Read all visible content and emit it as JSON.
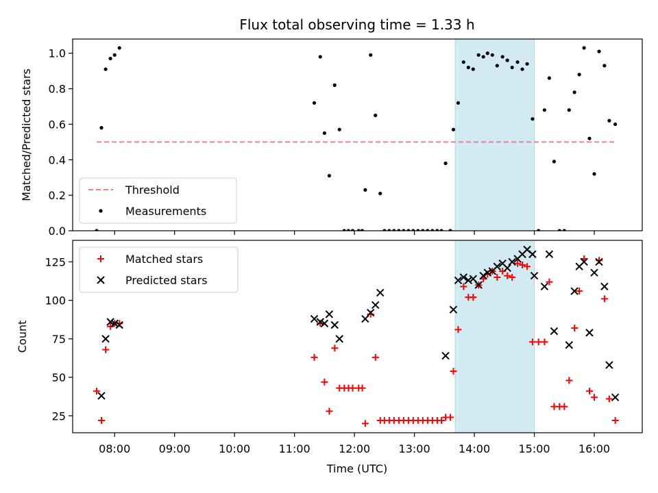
{
  "chart_data": {
    "type": "scatter",
    "title": "Flux total observing time = 1.33 h",
    "xlabel": "Time (UTC)",
    "x_ticks": [
      "08:00",
      "09:00",
      "10:00",
      "11:00",
      "12:00",
      "13:00",
      "14:00",
      "15:00",
      "16:00"
    ],
    "xlim": [
      7.3,
      16.8
    ],
    "highlight_span": [
      13.68,
      15.0
    ],
    "highlight_color": "#add8e6",
    "panels": [
      {
        "ylabel": "Matched/Predicted stars",
        "ylim": [
          0.0,
          1.08
        ],
        "y_ticks": [
          "0.0",
          "0.2",
          "0.4",
          "0.6",
          "0.8",
          "1.0"
        ],
        "threshold": {
          "label": "Threshold",
          "y": 0.5,
          "x_range": [
            7.7,
            16.35
          ],
          "color": "#f08080"
        },
        "legend": [
          {
            "label": "Threshold",
            "marker": "dashed-line",
            "color": "#f08080"
          },
          {
            "label": "Measurements",
            "marker": "dot",
            "color": "#000000"
          }
        ],
        "series": [
          {
            "name": "Measurements",
            "marker": "dot",
            "color": "#000000",
            "points": [
              [
                7.7,
                0.0
              ],
              [
                7.78,
                0.58
              ],
              [
                7.85,
                0.91
              ],
              [
                7.93,
                0.97
              ],
              [
                8.0,
                0.99
              ],
              [
                8.08,
                1.03
              ],
              [
                11.33,
                0.72
              ],
              [
                11.43,
                0.98
              ],
              [
                11.5,
                0.55
              ],
              [
                11.58,
                0.31
              ],
              [
                11.67,
                0.82
              ],
              [
                11.75,
                0.57
              ],
              [
                11.83,
                0.0
              ],
              [
                11.9,
                0.0
              ],
              [
                11.97,
                0.0
              ],
              [
                12.07,
                0.0
              ],
              [
                12.13,
                0.0
              ],
              [
                12.18,
                0.23
              ],
              [
                12.27,
                0.99
              ],
              [
                12.35,
                0.65
              ],
              [
                12.43,
                0.21
              ],
              [
                12.5,
                0.0
              ],
              [
                12.58,
                0.0
              ],
              [
                12.66,
                0.0
              ],
              [
                12.74,
                0.0
              ],
              [
                12.82,
                0.0
              ],
              [
                12.9,
                0.0
              ],
              [
                12.98,
                0.0
              ],
              [
                13.06,
                0.0
              ],
              [
                13.14,
                0.0
              ],
              [
                13.22,
                0.0
              ],
              [
                13.3,
                0.0
              ],
              [
                13.38,
                0.0
              ],
              [
                13.45,
                0.0
              ],
              [
                13.52,
                0.38
              ],
              [
                13.6,
                0.0
              ],
              [
                13.65,
                0.57
              ],
              [
                13.73,
                0.72
              ],
              [
                13.82,
                0.95
              ],
              [
                13.9,
                0.92
              ],
              [
                13.98,
                0.91
              ],
              [
                14.07,
                0.99
              ],
              [
                14.15,
                0.98
              ],
              [
                14.22,
                1.0
              ],
              [
                14.3,
                0.99
              ],
              [
                14.38,
                0.93
              ],
              [
                14.47,
                0.98
              ],
              [
                14.55,
                0.96
              ],
              [
                14.63,
                0.92
              ],
              [
                14.72,
                0.95
              ],
              [
                14.8,
                0.91
              ],
              [
                14.88,
                0.94
              ],
              [
                14.97,
                0.63
              ],
              [
                15.07,
                0.0
              ],
              [
                15.17,
                0.68
              ],
              [
                15.25,
                0.86
              ],
              [
                15.33,
                0.39
              ],
              [
                15.42,
                0.0
              ],
              [
                15.5,
                0.0
              ],
              [
                15.58,
                0.68
              ],
              [
                15.67,
                0.78
              ],
              [
                15.75,
                0.88
              ],
              [
                15.83,
                1.03
              ],
              [
                15.92,
                0.52
              ],
              [
                16.0,
                0.32
              ],
              [
                16.08,
                1.01
              ],
              [
                16.17,
                0.93
              ],
              [
                16.25,
                0.62
              ],
              [
                16.35,
                0.6
              ]
            ]
          }
        ]
      },
      {
        "ylabel": "Count",
        "ylim": [
          14.0,
          139.0
        ],
        "y_ticks": [
          "25",
          "50",
          "75",
          "100",
          "125"
        ],
        "legend": [
          {
            "label": "Matched stars",
            "marker": "plus",
            "color": "#ff0000"
          },
          {
            "label": "Predicted stars",
            "marker": "cross",
            "color": "#000000"
          }
        ],
        "series": [
          {
            "name": "Matched stars",
            "marker": "plus",
            "color": "#ff0000",
            "points": [
              [
                7.7,
                41
              ],
              [
                7.78,
                22
              ],
              [
                7.85,
                68
              ],
              [
                7.93,
                83
              ],
              [
                8.0,
                85
              ],
              [
                8.08,
                85
              ],
              [
                11.33,
                63
              ],
              [
                11.43,
                85
              ],
              [
                11.5,
                47
              ],
              [
                11.58,
                28
              ],
              [
                11.67,
                69
              ],
              [
                11.75,
                43
              ],
              [
                11.83,
                43
              ],
              [
                11.9,
                43
              ],
              [
                11.97,
                43
              ],
              [
                12.07,
                43
              ],
              [
                12.13,
                43
              ],
              [
                12.18,
                20
              ],
              [
                12.27,
                91
              ],
              [
                12.35,
                63
              ],
              [
                12.43,
                22
              ],
              [
                12.5,
                22
              ],
              [
                12.58,
                22
              ],
              [
                12.66,
                22
              ],
              [
                12.74,
                22
              ],
              [
                12.82,
                22
              ],
              [
                12.9,
                22
              ],
              [
                12.98,
                22
              ],
              [
                13.06,
                22
              ],
              [
                13.14,
                22
              ],
              [
                13.22,
                22
              ],
              [
                13.3,
                22
              ],
              [
                13.38,
                22
              ],
              [
                13.45,
                22
              ],
              [
                13.52,
                24
              ],
              [
                13.6,
                24
              ],
              [
                13.65,
                54
              ],
              [
                13.73,
                81
              ],
              [
                13.82,
                109
              ],
              [
                13.9,
                102
              ],
              [
                13.98,
                102
              ],
              [
                14.07,
                110
              ],
              [
                14.15,
                114
              ],
              [
                14.22,
                117
              ],
              [
                14.3,
                119
              ],
              [
                14.38,
                115
              ],
              [
                14.47,
                119
              ],
              [
                14.55,
                116
              ],
              [
                14.63,
                115
              ],
              [
                14.72,
                124
              ],
              [
                14.8,
                123
              ],
              [
                14.88,
                122
              ],
              [
                14.97,
                73
              ],
              [
                15.07,
                73
              ],
              [
                15.17,
                73
              ],
              [
                15.25,
                112
              ],
              [
                15.33,
                31
              ],
              [
                15.42,
                31
              ],
              [
                15.5,
                31
              ],
              [
                15.58,
                48
              ],
              [
                15.67,
                82
              ],
              [
                15.75,
                106
              ],
              [
                15.83,
                127
              ],
              [
                15.92,
                41
              ],
              [
                16.0,
                37
              ],
              [
                16.08,
                126
              ],
              [
                16.17,
                101
              ],
              [
                16.25,
                36
              ],
              [
                16.35,
                22
              ]
            ]
          },
          {
            "name": "Predicted stars",
            "marker": "cross",
            "color": "#000000",
            "points": [
              [
                7.78,
                38
              ],
              [
                7.85,
                75
              ],
              [
                7.93,
                86
              ],
              [
                8.0,
                85
              ],
              [
                8.08,
                84
              ],
              [
                11.33,
                88
              ],
              [
                11.43,
                86
              ],
              [
                11.5,
                85
              ],
              [
                11.58,
                91
              ],
              [
                11.67,
                84
              ],
              [
                11.75,
                75
              ],
              [
                12.18,
                88
              ],
              [
                12.27,
                92
              ],
              [
                12.35,
                97
              ],
              [
                12.43,
                105
              ],
              [
                13.52,
                64
              ],
              [
                13.65,
                94
              ],
              [
                13.73,
                113
              ],
              [
                13.82,
                115
              ],
              [
                13.9,
                113
              ],
              [
                13.98,
                114
              ],
              [
                14.07,
                110
              ],
              [
                14.15,
                116
              ],
              [
                14.22,
                118
              ],
              [
                14.3,
                119
              ],
              [
                14.38,
                122
              ],
              [
                14.47,
                124
              ],
              [
                14.55,
                121
              ],
              [
                14.63,
                125
              ],
              [
                14.72,
                127
              ],
              [
                14.8,
                130
              ],
              [
                14.88,
                133
              ],
              [
                14.97,
                130
              ],
              [
                15.0,
                116
              ],
              [
                15.17,
                109
              ],
              [
                15.25,
                130
              ],
              [
                15.33,
                80
              ],
              [
                15.58,
                71
              ],
              [
                15.67,
                106
              ],
              [
                15.75,
                122
              ],
              [
                15.83,
                125
              ],
              [
                15.92,
                79
              ],
              [
                16.0,
                118
              ],
              [
                16.08,
                125
              ],
              [
                16.17,
                109
              ],
              [
                16.25,
                58
              ],
              [
                16.35,
                37
              ]
            ]
          }
        ]
      }
    ]
  }
}
